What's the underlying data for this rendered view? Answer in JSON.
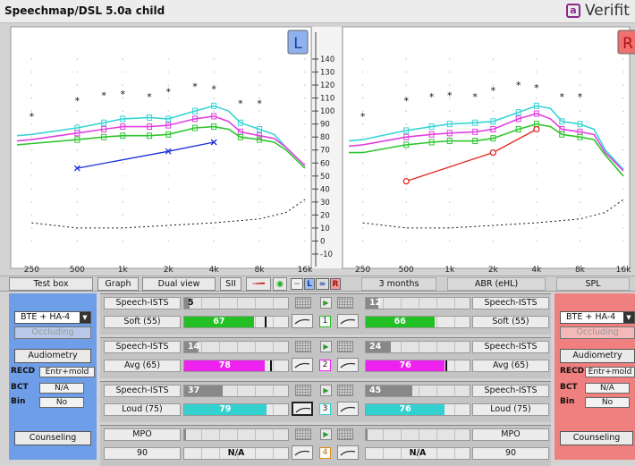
{
  "app": {
    "title": "Speechmap/DSL 5.0a child",
    "brand": "Verifit",
    "brand_icon": "verifit-logo-icon"
  },
  "chart_data": [
    {
      "type": "line",
      "side": "L",
      "badge": "L",
      "x_type": "log",
      "xlim": [
        200,
        16000
      ],
      "ylim": [
        -10,
        145
      ],
      "grid": true,
      "series": [
        {
          "color": "#38d4d4",
          "x": [
            200,
            250,
            500,
            750,
            1000,
            1500,
            2000,
            3000,
            4000,
            5000,
            6000,
            8000,
            10000,
            12000,
            16000
          ],
          "values": [
            81,
            82,
            87,
            91,
            94,
            95,
            94,
            100,
            104,
            100,
            91,
            86,
            82,
            72,
            58
          ]
        },
        {
          "color": "#e040e0",
          "x": [
            200,
            250,
            500,
            750,
            1000,
            1500,
            2000,
            3000,
            4000,
            5000,
            6000,
            8000,
            10000,
            12000,
            16000
          ],
          "values": [
            77,
            78,
            83,
            86,
            88,
            88,
            89,
            94,
            96,
            92,
            84,
            81,
            79,
            72,
            58
          ]
        },
        {
          "color": "#2ec62e",
          "x": [
            200,
            250,
            500,
            750,
            1000,
            1500,
            2000,
            3000,
            4000,
            5000,
            6000,
            8000,
            10000,
            12000,
            16000
          ],
          "values": [
            74,
            75,
            78,
            80,
            81,
            81,
            82,
            87,
            88,
            86,
            80,
            78,
            76,
            70,
            56
          ]
        },
        {
          "color": "#1a30d8",
          "x": [
            500,
            2000,
            4000
          ],
          "values": [
            56,
            69,
            76
          ]
        },
        {
          "color": "#111111",
          "x": [
            250,
            500,
            750,
            1000,
            1500,
            2000,
            3000,
            4000,
            6000,
            8000
          ],
          "values": [
            96,
            108,
            112,
            113,
            111,
            115,
            119,
            117,
            106,
            106
          ]
        },
        {
          "color": "#111111",
          "x": [
            250,
            500,
            1000,
            2000,
            4000,
            8000,
            12000,
            16000
          ],
          "values": [
            14,
            10,
            10,
            12,
            14,
            17,
            22,
            32
          ]
        }
      ]
    },
    {
      "type": "line",
      "side": "R",
      "badge": "R",
      "x_type": "log",
      "xlim": [
        200,
        16000
      ],
      "ylim": [
        -10,
        145
      ],
      "grid": true,
      "series": [
        {
          "color": "#38d4d4",
          "x": [
            200,
            250,
            500,
            750,
            1000,
            1500,
            2000,
            3000,
            4000,
            5000,
            6000,
            8000,
            10000,
            12000,
            16000
          ],
          "values": [
            77,
            78,
            85,
            88,
            90,
            91,
            92,
            99,
            104,
            102,
            92,
            90,
            86,
            70,
            55
          ]
        },
        {
          "color": "#e040e0",
          "x": [
            200,
            250,
            500,
            750,
            1000,
            1500,
            2000,
            3000,
            4000,
            5000,
            6000,
            8000,
            10000,
            12000,
            16000
          ],
          "values": [
            73,
            74,
            80,
            82,
            83,
            84,
            86,
            94,
            98,
            94,
            86,
            84,
            82,
            68,
            54
          ]
        },
        {
          "color": "#2ec62e",
          "x": [
            200,
            250,
            500,
            750,
            1000,
            1500,
            2000,
            3000,
            4000,
            5000,
            6000,
            8000,
            10000,
            12000,
            16000
          ],
          "values": [
            68,
            68,
            74,
            76,
            77,
            77,
            79,
            86,
            90,
            88,
            82,
            80,
            78,
            66,
            50
          ]
        },
        {
          "color": "#e0281e",
          "x": [
            500,
            2000,
            4000
          ],
          "values": [
            46,
            68,
            86
          ]
        },
        {
          "color": "#111111",
          "x": [
            250,
            500,
            750,
            1000,
            1500,
            2000,
            3000,
            4000,
            6000,
            8000
          ],
          "values": [
            96,
            108,
            111,
            112,
            111,
            116,
            120,
            118,
            111,
            111
          ]
        },
        {
          "color": "#111111",
          "x": [
            250,
            500,
            1000,
            2000,
            4000,
            8000,
            12000,
            16000
          ],
          "values": [
            14,
            10,
            10,
            12,
            14,
            17,
            22,
            32
          ]
        }
      ]
    }
  ],
  "axes": {
    "y_ticks": [
      "140",
      "130",
      "120",
      "110",
      "100",
      "90",
      "80",
      "70",
      "60",
      "50",
      "40",
      "30",
      "20",
      "10",
      "0",
      "-10"
    ],
    "x_ticks_left": [
      "250",
      "500",
      "1k",
      "2k",
      "4k",
      "8k",
      "16k"
    ],
    "x_ticks_right": [
      "250",
      "500",
      "1k",
      "2k",
      "4k",
      "8k",
      "16k"
    ]
  },
  "toolbar": {
    "test_box": "Test box",
    "graph": "Graph",
    "view": "Dual view",
    "sii": "SII",
    "btn_l": "L",
    "btn_lr": "∞",
    "btn_r": "R",
    "age": "3 months",
    "transducer": "ABR (eHL)",
    "scale": "SPL"
  },
  "left_panel": {
    "instrument": "BTE + HA-4",
    "vent": "Occluding",
    "audiometry": "Audiometry",
    "recd_label": "RECD",
    "recd_value": "Entr+mold",
    "bct_label": "BCT",
    "bct_value": "N/A",
    "bin_label": "Bin",
    "bin_value": "No",
    "counseling": "Counseling"
  },
  "right_panel": {
    "instrument": "BTE + HA-4",
    "vent": "Occluding",
    "audiometry": "Audiometry",
    "recd_label": "RECD",
    "recd_value": "Entr+mold",
    "bct_label": "BCT",
    "bct_value": "N/A",
    "bin_label": "Bin",
    "bin_value": "No",
    "counseling": "Counseling"
  },
  "tests": [
    {
      "num": "1",
      "color": "#22c022",
      "signal_l": "Speech-ISTS",
      "signal_r": "Speech-ISTS",
      "level_l": "Soft (55)",
      "level_r": "Soft (55)",
      "sii_l": "5",
      "sii_r": "12",
      "sii_l_frac": 0.05,
      "sii_r_frac": 0.12,
      "val_l": "67",
      "val_r": "66",
      "val_l_frac": 0.67,
      "val_r_frac": 0.66,
      "mark_l": 0.78,
      "mark_r": null
    },
    {
      "num": "2",
      "color": "#ee22ee",
      "signal_l": "Speech-ISTS",
      "signal_r": "Speech-ISTS",
      "level_l": "Avg (65)",
      "level_r": "Avg (65)",
      "sii_l": "14",
      "sii_r": "24",
      "sii_l_frac": 0.14,
      "sii_r_frac": 0.24,
      "val_l": "78",
      "val_r": "76",
      "val_l_frac": 0.78,
      "val_r_frac": 0.76,
      "mark_l": 0.83,
      "mark_r": 0.77
    },
    {
      "num": "3",
      "color": "#33d0d0",
      "signal_l": "Speech-ISTS",
      "signal_r": "Speech-ISTS",
      "level_l": "Loud (75)",
      "level_r": "Loud (75)",
      "sii_l": "37",
      "sii_r": "45",
      "sii_l_frac": 0.37,
      "sii_r_frac": 0.45,
      "val_l": "79",
      "val_r": "76",
      "val_l_frac": 0.79,
      "val_r_frac": 0.76,
      "mark_l": null,
      "mark_r": null
    },
    {
      "num": "4",
      "color": "#e08a10",
      "signal_l": "MPO",
      "signal_r": "MPO",
      "level_l": "90",
      "level_r": "90",
      "sii_l": "",
      "sii_r": "",
      "sii_l_frac": 0,
      "sii_r_frac": 0,
      "val_l": "N/A",
      "val_r": "N/A",
      "val_l_frac": 0,
      "val_r_frac": 0,
      "mark_l": null,
      "mark_r": null
    }
  ]
}
